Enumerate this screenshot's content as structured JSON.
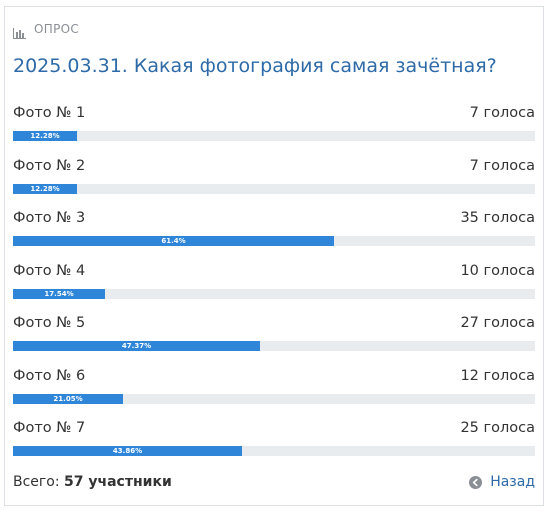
{
  "poll": {
    "label": "ОПРОС",
    "title": "2025.03.31. Какая фотография самая зачётная?",
    "options": [
      {
        "label": "Фото № 1",
        "votes": "7 голоса",
        "percent": 12.28,
        "percent_label": "12.28%"
      },
      {
        "label": "Фото № 2",
        "votes": "7 голоса",
        "percent": 12.28,
        "percent_label": "12.28%"
      },
      {
        "label": "Фото № 3",
        "votes": "35 голоса",
        "percent": 61.4,
        "percent_label": "61.4%"
      },
      {
        "label": "Фото № 4",
        "votes": "10 голоса",
        "percent": 17.54,
        "percent_label": "17.54%"
      },
      {
        "label": "Фото № 5",
        "votes": "27 голоса",
        "percent": 47.37,
        "percent_label": "47.37%"
      },
      {
        "label": "Фото № 6",
        "votes": "12 голоса",
        "percent": 21.05,
        "percent_label": "21.05%"
      },
      {
        "label": "Фото № 7",
        "votes": "25 голоса",
        "percent": 43.86,
        "percent_label": "43.86%"
      }
    ],
    "total_label": "Всего:",
    "total_value": "57 участники",
    "back_label": "Назад"
  },
  "colors": {
    "accent": "#2e6aa8",
    "bar_fill": "#2f86d8",
    "bar_track": "#e9ecef"
  },
  "icons": {
    "poll": "bar-chart-icon",
    "back": "arrow-left-circle-icon"
  }
}
